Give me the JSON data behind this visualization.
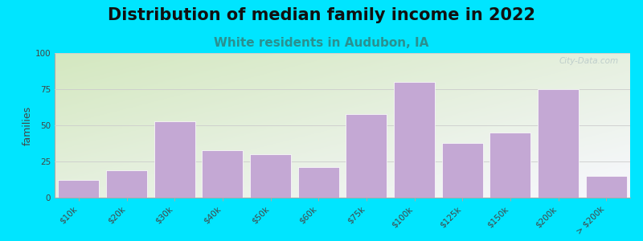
{
  "title": "Distribution of median family income in 2022",
  "subtitle": "White residents in Audubon, IA",
  "ylabel": "families",
  "categories": [
    "$10k",
    "$20k",
    "$30k",
    "$40k",
    "$50k",
    "$60k",
    "$75k",
    "$100k",
    "$125k",
    "$150k",
    "$200k",
    "> $200k"
  ],
  "bin_edges": [
    0,
    10,
    20,
    30,
    40,
    50,
    60,
    75,
    100,
    125,
    150,
    200,
    250
  ],
  "values": [
    12,
    19,
    53,
    33,
    30,
    21,
    58,
    80,
    38,
    45,
    75,
    15
  ],
  "bar_color": "#c4a8d4",
  "bar_edgecolor": "#ffffff",
  "background_color": "#00e5ff",
  "plot_bg_color_topleft": "#d4e8c0",
  "plot_bg_color_white": "#f8f8ff",
  "title_fontsize": 15,
  "subtitle_fontsize": 11,
  "subtitle_color": "#2a9090",
  "ylabel_fontsize": 9,
  "tick_fontsize": 7.5,
  "ylim": [
    0,
    100
  ],
  "yticks": [
    0,
    25,
    50,
    75,
    100
  ],
  "watermark": "City-Data.com",
  "watermark_color": "#b8c8c8"
}
